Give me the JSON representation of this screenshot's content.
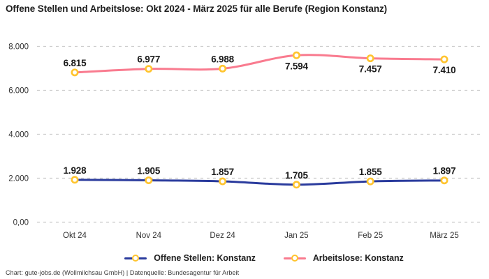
{
  "title": "Offene Stellen und Arbeitslose: Okt 2024 - März 2025 für alle Berufe (Region Konstanz)",
  "footer": "Chart: gute-jobs.de (Wollmilchsau GmbH) | Datenquelle: Bundesagentur für Arbeit",
  "colors": {
    "grid": "#CBCBCB",
    "axis_text": "#333333",
    "point_label_text": "#1A1A1A",
    "marker_ring": "#FFC42E",
    "marker_fill": "#FFFFFF",
    "series_blue": "#2A3B9D",
    "series_pink": "#F97B8F",
    "background": "#FFFFFF"
  },
  "chart_data": {
    "type": "line",
    "title": "Offene Stellen und Arbeitslose: Okt 2024 - März 2025 für alle Berufe (Region Konstanz)",
    "categories": [
      "Okt 24",
      "Nov 24",
      "Dez 24",
      "Jan 25",
      "Feb 25",
      "März 25"
    ],
    "series": [
      {
        "name": "Offene Stellen: Konstanz",
        "color": "#2A3B9D",
        "values": [
          1928,
          1905,
          1857,
          1705,
          1855,
          1897
        ],
        "labels": [
          "1.928",
          "1.905",
          "1.857",
          "1.705",
          "1.855",
          "1.897"
        ]
      },
      {
        "name": "Arbeitslose: Konstanz",
        "color": "#F97B8F",
        "values": [
          6815,
          6977,
          6988,
          7594,
          7457,
          7410
        ],
        "labels": [
          "6.815",
          "6.977",
          "6.988",
          "7.594",
          "7.457",
          "7.410"
        ]
      }
    ],
    "yticks": [
      {
        "value": 0,
        "label": "0,00"
      },
      {
        "value": 2000,
        "label": "2.000"
      },
      {
        "value": 4000,
        "label": "4.000"
      },
      {
        "value": 6000,
        "label": "6.000"
      },
      {
        "value": 8000,
        "label": "8.000"
      }
    ],
    "ylim": [
      0,
      8000
    ],
    "xlabel": "",
    "ylabel": "",
    "grid": "horizontal-dashed",
    "legend_position": "bottom",
    "marker": "ring-circle",
    "line_style": "smooth"
  }
}
